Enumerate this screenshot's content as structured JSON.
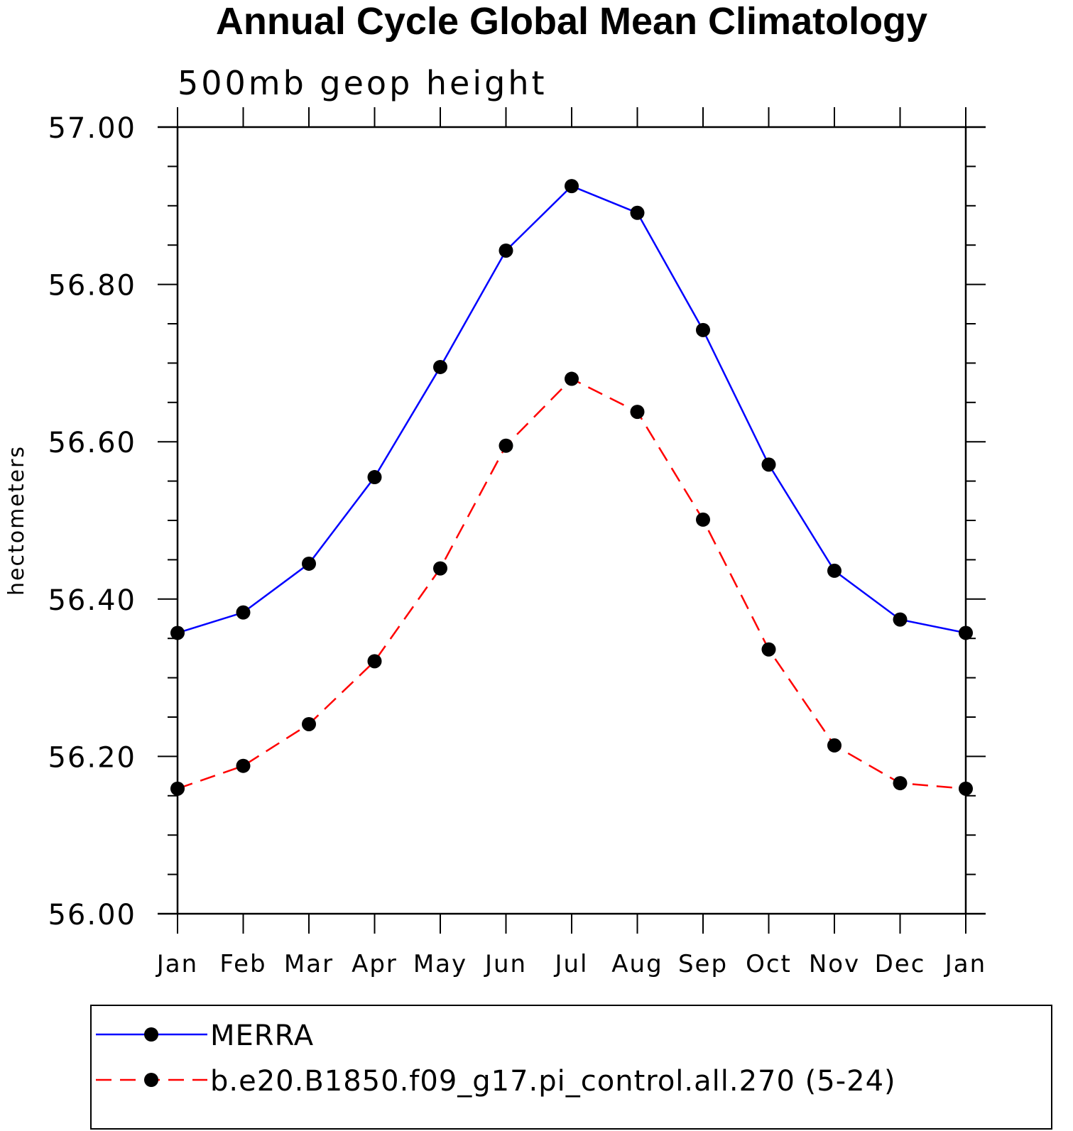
{
  "chart_data": {
    "type": "line",
    "title": "Annual Cycle Global Mean Climatology",
    "subtitle": "500mb geop height",
    "ylabel": "hectometers",
    "xlabel": "",
    "ylim": [
      56.0,
      57.0
    ],
    "yticks": [
      "56.00",
      "56.20",
      "56.40",
      "56.60",
      "56.80",
      "57.00"
    ],
    "categories": [
      "Jan",
      "Feb",
      "Mar",
      "Apr",
      "May",
      "Jun",
      "Jul",
      "Aug",
      "Sep",
      "Oct",
      "Nov",
      "Dec",
      "Jan"
    ],
    "series": [
      {
        "name": "MERRA",
        "color": "#0000ff",
        "dash": "solid",
        "marker": "filled-circle",
        "values": [
          56.357,
          56.383,
          56.445,
          56.555,
          56.695,
          56.843,
          56.925,
          56.891,
          56.742,
          56.571,
          56.436,
          56.374,
          56.357
        ]
      },
      {
        "name": "b.e20.B1850.f09_g17.pi_control.all.270 (5-24)",
        "color": "#ff0000",
        "dash": "dashed",
        "marker": "filled-circle",
        "values": [
          56.159,
          56.188,
          56.241,
          56.321,
          56.439,
          56.595,
          56.68,
          56.638,
          56.501,
          56.336,
          56.214,
          56.166,
          56.159
        ]
      }
    ],
    "grid": false,
    "legend": "bottom"
  }
}
